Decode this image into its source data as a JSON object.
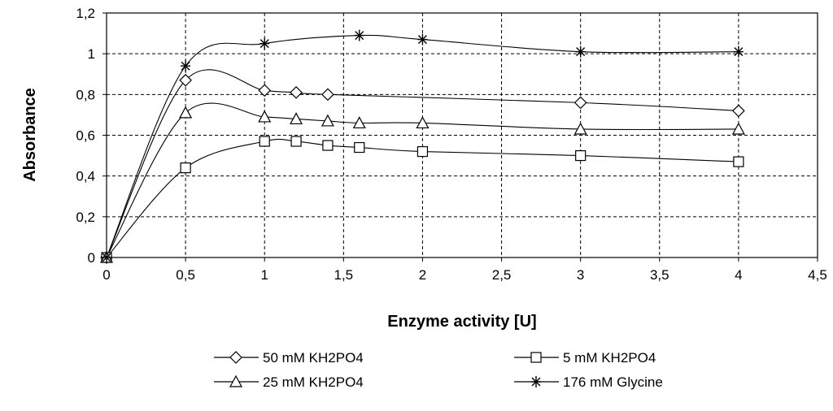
{
  "chart_data": {
    "type": "line",
    "title": "",
    "xlabel": "Enzyme activity [U]",
    "ylabel": "Absorbance",
    "xlim": [
      0,
      4.5
    ],
    "ylim": [
      0,
      1.2
    ],
    "x_ticks": [
      "0",
      "0,5",
      "1",
      "1,5",
      "2",
      "2,5",
      "3",
      "3,5",
      "4",
      "4,5"
    ],
    "y_ticks": [
      "0",
      "0,2",
      "0,4",
      "0,6",
      "0,8",
      "1",
      "1,2"
    ],
    "grid": true,
    "grid_style": "dashed",
    "smooth_lines": true,
    "legend_position": "bottom",
    "series": [
      {
        "name": "50 mM KH2PO4",
        "marker": "diamond",
        "x": [
          0,
          0.5,
          1,
          1.2,
          1.4,
          3,
          4
        ],
        "y": [
          0,
          0.87,
          0.82,
          0.81,
          0.8,
          0.76,
          0.72
        ]
      },
      {
        "name": "5 mM KH2PO4",
        "marker": "square",
        "x": [
          0,
          0.5,
          1,
          1.2,
          1.4,
          1.6,
          2,
          3,
          4
        ],
        "y": [
          0,
          0.44,
          0.57,
          0.57,
          0.55,
          0.54,
          0.52,
          0.5,
          0.47
        ]
      },
      {
        "name": "25 mM KH2PO4",
        "marker": "triangle",
        "x": [
          0,
          0.5,
          1,
          1.2,
          1.4,
          1.6,
          2,
          3,
          4
        ],
        "y": [
          0,
          0.71,
          0.69,
          0.68,
          0.67,
          0.66,
          0.66,
          0.63,
          0.63
        ]
      },
      {
        "name": "176 mM Glycine",
        "marker": "asterisk",
        "x": [
          0,
          0.5,
          1,
          1.6,
          2,
          3,
          4
        ],
        "y": [
          0,
          0.94,
          1.05,
          1.09,
          1.07,
          1.01,
          1.01
        ]
      }
    ]
  }
}
